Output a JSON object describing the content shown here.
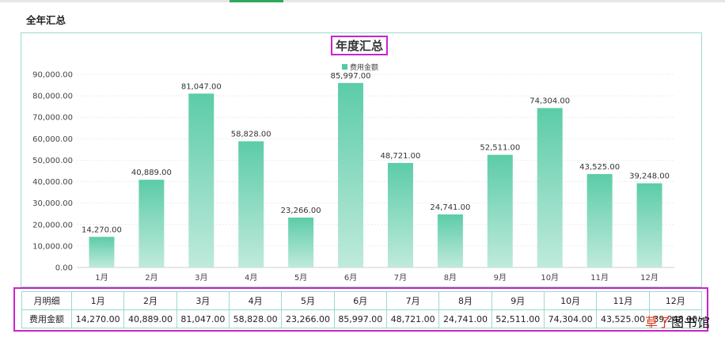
{
  "page": {
    "section_title": "全年汇总"
  },
  "chart_data": {
    "type": "bar",
    "title": "年度汇总",
    "categories": [
      "1月",
      "2月",
      "3月",
      "4月",
      "5月",
      "6月",
      "7月",
      "8月",
      "9月",
      "10月",
      "11月",
      "12月"
    ],
    "series": [
      {
        "name": "费用金额",
        "values": [
          14270,
          40889,
          81047,
          58828,
          23266,
          85997,
          48721,
          24741,
          52511,
          74304,
          43525,
          39248
        ]
      }
    ],
    "data_labels": [
      "14,270.00",
      "40,889.00",
      "81,047.00",
      "58,828.00",
      "23,266.00",
      "85,997.00",
      "48,721.00",
      "24,741.00",
      "52,511.00",
      "74,304.00",
      "43,525.00",
      "39,248.00"
    ],
    "yticks": [
      "0.00",
      "10,000.00",
      "20,000.00",
      "30,000.00",
      "40,000.00",
      "50,000.00",
      "60,000.00",
      "70,000.00",
      "80,000.00",
      "90,000.00"
    ],
    "ylim": [
      0,
      90000
    ],
    "legend_position": "top-center",
    "grid": true,
    "bar_color_top": "#5ccca8",
    "bar_color_bottom": "#bfeadc"
  },
  "table": {
    "row_headers": [
      "月明细",
      "费用金额"
    ],
    "months": [
      "1月",
      "2月",
      "3月",
      "4月",
      "5月",
      "6月",
      "7月",
      "8月",
      "9月",
      "10月",
      "11月",
      "12月"
    ],
    "amounts": [
      "14,270.00",
      "40,889.00",
      "81,047.00",
      "58,828.00",
      "23,266.00",
      "85,997.00",
      "48,721.00",
      "24,741.00",
      "52,511.00",
      "74,304.00",
      "43,525.00",
      "39,248.00"
    ]
  },
  "watermark": {
    "part1": "草了",
    "part2": "图书馆"
  }
}
